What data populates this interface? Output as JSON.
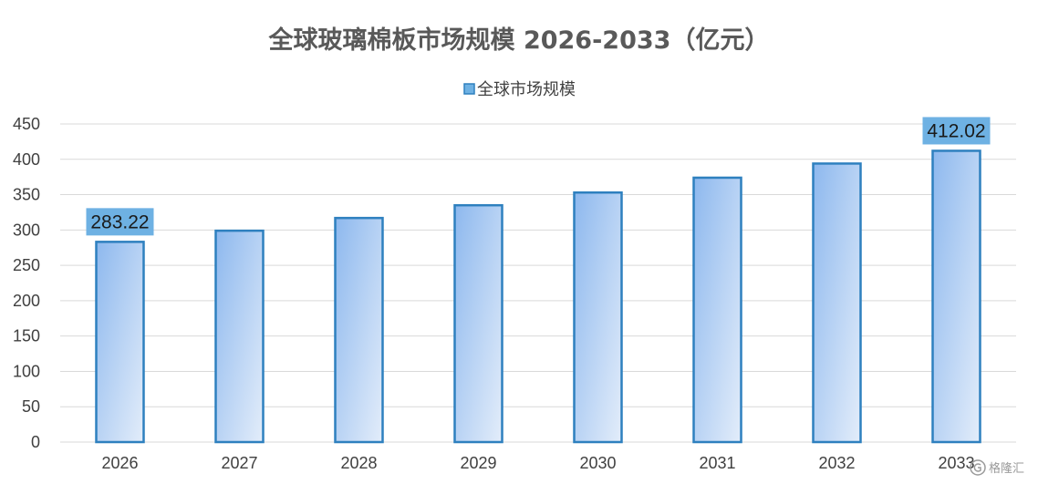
{
  "chart_data": {
    "type": "bar",
    "title": "全球玻璃棉板市场规模 2026-2033（亿元）",
    "categories": [
      "2026",
      "2027",
      "2028",
      "2029",
      "2030",
      "2031",
      "2032",
      "2033"
    ],
    "series": [
      {
        "name": "全球市场规模",
        "values": [
          283.22,
          299,
          317,
          335,
          353,
          374,
          394,
          412.02
        ]
      }
    ],
    "data_labels": [
      {
        "index": 0,
        "text": "283.22"
      },
      {
        "index": 7,
        "text": "412.02"
      }
    ],
    "ylim": [
      0,
      450
    ],
    "yticks": [
      0,
      50,
      100,
      150,
      200,
      250,
      300,
      350,
      400,
      450
    ],
    "xlabel": "",
    "ylabel": "",
    "grid": true,
    "legend_position": "top"
  },
  "colors": {
    "bar_border": "#2E80BF",
    "bar_fill_top": "#8DB8EE",
    "bar_fill_bottom": "#E3EDFA",
    "label_bg": "#6EB1E3",
    "grid": "#D9D9D9"
  },
  "watermark": {
    "icon": "gelonghui-logo-icon",
    "text": "格隆汇"
  }
}
